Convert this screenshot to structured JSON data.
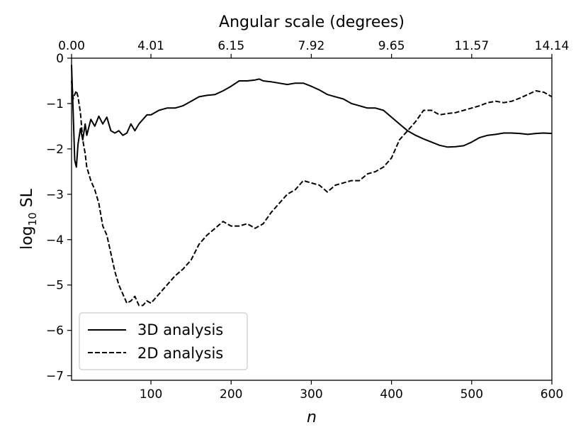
{
  "chart_data": {
    "type": "line",
    "xlabel": "n",
    "ylabel_base": "log",
    "ylabel_sub": "10",
    "ylabel_rest": " SL",
    "top_xlabel": "Angular scale (degrees)",
    "xlim": [
      1,
      600
    ],
    "ylim": [
      -7.1,
      0
    ],
    "x_ticks": [
      100,
      200,
      300,
      400,
      500,
      600
    ],
    "x_tick_labels": [
      "100",
      "200",
      "300",
      "400",
      "500",
      "600"
    ],
    "y_ticks": [
      0,
      -1,
      -2,
      -3,
      -4,
      -5,
      -6,
      -7
    ],
    "y_tick_labels": [
      "0",
      "−1",
      "−2",
      "−3",
      "−4",
      "−5",
      "−6",
      "−7"
    ],
    "top_ticks": [
      1,
      100,
      200,
      300,
      400,
      500,
      600
    ],
    "top_tick_labels": [
      "0.00",
      "4.01",
      "6.15",
      "7.92",
      "9.65",
      "11.57",
      "14.14"
    ],
    "grid": false,
    "legend_position": "lower-left",
    "series": [
      {
        "name": "3D analysis",
        "dash": "solid",
        "x": [
          1,
          3,
          5,
          7,
          9,
          12,
          15,
          18,
          20,
          25,
          30,
          35,
          40,
          45,
          50,
          55,
          60,
          65,
          70,
          75,
          80,
          85,
          90,
          95,
          100,
          110,
          120,
          130,
          140,
          150,
          160,
          170,
          180,
          190,
          200,
          210,
          220,
          230,
          235,
          240,
          250,
          260,
          270,
          280,
          290,
          300,
          310,
          320,
          330,
          340,
          350,
          360,
          370,
          380,
          390,
          400,
          410,
          420,
          430,
          440,
          450,
          460,
          470,
          480,
          490,
          500,
          510,
          520,
          530,
          540,
          550,
          560,
          570,
          580,
          590,
          600
        ],
        "y": [
          -0.15,
          -1.2,
          -2.25,
          -2.4,
          -1.9,
          -1.55,
          -1.8,
          -1.45,
          -1.7,
          -1.35,
          -1.5,
          -1.28,
          -1.45,
          -1.3,
          -1.6,
          -1.65,
          -1.6,
          -1.7,
          -1.65,
          -1.45,
          -1.6,
          -1.45,
          -1.35,
          -1.25,
          -1.25,
          -1.15,
          -1.1,
          -1.1,
          -1.05,
          -0.95,
          -0.85,
          -0.82,
          -0.8,
          -0.72,
          -0.62,
          -0.5,
          -0.5,
          -0.48,
          -0.46,
          -0.5,
          -0.52,
          -0.55,
          -0.58,
          -0.55,
          -0.55,
          -0.62,
          -0.7,
          -0.8,
          -0.85,
          -0.9,
          -1.0,
          -1.05,
          -1.1,
          -1.1,
          -1.15,
          -1.3,
          -1.45,
          -1.6,
          -1.7,
          -1.78,
          -1.85,
          -1.92,
          -1.96,
          -1.95,
          -1.93,
          -1.85,
          -1.75,
          -1.7,
          -1.68,
          -1.65,
          -1.65,
          -1.66,
          -1.68,
          -1.66,
          -1.65,
          -1.66
        ]
      },
      {
        "name": "2D analysis",
        "dash": "dashed",
        "x": [
          1,
          3,
          5,
          7,
          9,
          12,
          15,
          18,
          20,
          25,
          30,
          35,
          40,
          45,
          50,
          55,
          60,
          65,
          70,
          75,
          80,
          85,
          90,
          95,
          100,
          110,
          120,
          130,
          140,
          150,
          160,
          170,
          180,
          190,
          200,
          210,
          220,
          230,
          240,
          250,
          260,
          270,
          280,
          290,
          300,
          310,
          320,
          330,
          340,
          350,
          360,
          370,
          380,
          390,
          400,
          410,
          420,
          430,
          440,
          450,
          460,
          470,
          480,
          490,
          500,
          510,
          520,
          530,
          540,
          550,
          560,
          570,
          580,
          590,
          600
        ],
        "y": [
          -0.5,
          -0.9,
          -0.8,
          -0.72,
          -0.85,
          -1.2,
          -1.8,
          -2.1,
          -2.4,
          -2.7,
          -2.9,
          -3.2,
          -3.7,
          -3.9,
          -4.3,
          -4.7,
          -5.0,
          -5.2,
          -5.4,
          -5.35,
          -5.25,
          -5.45,
          -5.45,
          -5.35,
          -5.4,
          -5.2,
          -5.0,
          -4.8,
          -4.65,
          -4.45,
          -4.1,
          -3.9,
          -3.75,
          -3.6,
          -3.7,
          -3.7,
          -3.65,
          -3.75,
          -3.65,
          -3.4,
          -3.2,
          -3.0,
          -2.9,
          -2.7,
          -2.75,
          -2.8,
          -2.95,
          -2.8,
          -2.75,
          -2.7,
          -2.7,
          -2.55,
          -2.5,
          -2.4,
          -2.2,
          -1.8,
          -1.6,
          -1.4,
          -1.15,
          -1.15,
          -1.25,
          -1.22,
          -1.2,
          -1.15,
          -1.1,
          -1.05,
          -0.98,
          -0.95,
          -0.98,
          -0.95,
          -0.88,
          -0.8,
          -0.72,
          -0.75,
          -0.85
        ]
      }
    ]
  }
}
